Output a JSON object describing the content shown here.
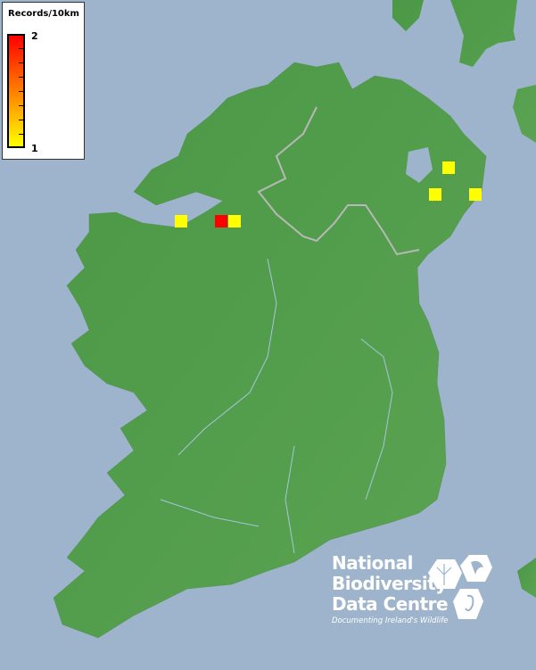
{
  "legend": {
    "title": "Records/10km",
    "max_label": "2",
    "min_label": "1",
    "color_max": "#ff0000",
    "color_min": "#ffff00"
  },
  "records": [
    {
      "value": 1,
      "color": "#ffff00"
    },
    {
      "value": 2,
      "color": "#ff0000"
    },
    {
      "value": 1,
      "color": "#ffff00"
    },
    {
      "value": 1,
      "color": "#ffff00"
    },
    {
      "value": 1,
      "color": "#ffff00"
    },
    {
      "value": 1,
      "color": "#ffff00"
    }
  ],
  "colors": {
    "sea": "#9db4cc",
    "land": "#4f9c4a",
    "border": "#b8b8b8"
  },
  "logo": {
    "line1": "National",
    "line2": "Biodiversity",
    "line3": "Data Centre",
    "tagline": "Documenting Ireland's Wildlife"
  }
}
